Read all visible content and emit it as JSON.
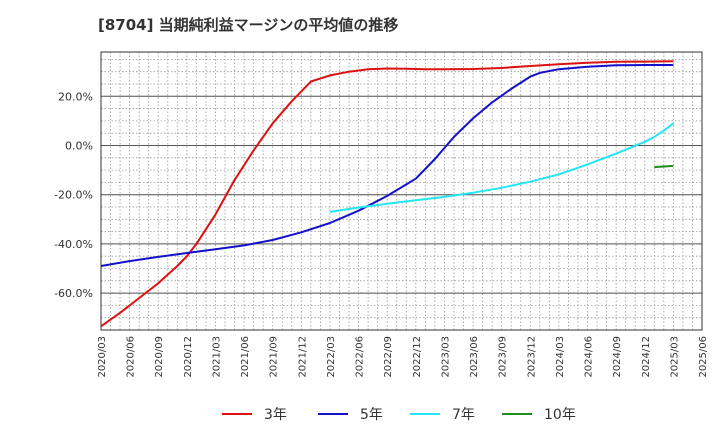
{
  "title": "[8704]  当期純利益マージンの平均値の推移",
  "chart_data": {
    "type": "line",
    "title": "[8704]  当期純利益マージンの平均値の推移",
    "xlabel": "",
    "ylabel": "",
    "x_range": [
      "2020-03",
      "2025-06"
    ],
    "ylim": [
      -75,
      38
    ],
    "y_ticks": [
      20,
      0,
      -20,
      -40,
      -60
    ],
    "y_tick_labels": [
      "20.0%",
      "0.0%",
      "-20.0%",
      "-40.0%",
      "-60.0%"
    ],
    "x_tick_labels": [
      "2020/03",
      "2020/06",
      "2020/09",
      "2020/12",
      "2021/03",
      "2021/06",
      "2021/09",
      "2021/12",
      "2022/03",
      "2022/06",
      "2022/09",
      "2022/12",
      "2023/03",
      "2023/06",
      "2023/09",
      "2023/12",
      "2024/03",
      "2024/06",
      "2024/09",
      "2024/12",
      "2025/03",
      "2025/06"
    ],
    "grid": true,
    "legend_position": "bottom",
    "series": [
      {
        "name": "3年",
        "color": "#dd1111",
        "x": [
          "2020-03",
          "2020-05",
          "2020-07",
          "2020-09",
          "2020-11",
          "2020-12",
          "2021-01",
          "2021-03",
          "2021-05",
          "2021-07",
          "2021-09",
          "2021-11",
          "2021-12",
          "2022-01",
          "2022-03",
          "2022-05",
          "2022-07",
          "2022-09",
          "2022-11",
          "2023-01",
          "2023-03",
          "2023-06",
          "2023-09",
          "2023-12",
          "2024-03",
          "2024-06",
          "2024-09",
          "2024-12",
          "2025-03"
        ],
        "values": [
          -73.5,
          -68,
          -62,
          -56,
          -49,
          -45,
          -40,
          -28,
          -14,
          -2,
          9,
          18,
          22,
          26,
          28.5,
          30,
          31,
          31.3,
          31.2,
          31,
          31,
          31.1,
          31.5,
          32.3,
          33,
          33.6,
          34,
          34.1,
          34.2
        ]
      },
      {
        "name": "5年",
        "color": "#1111cc",
        "x": [
          "2020-03",
          "2020-06",
          "2020-09",
          "2020-12",
          "2021-03",
          "2021-06",
          "2021-09",
          "2021-12",
          "2022-03",
          "2022-06",
          "2022-09",
          "2022-12",
          "2023-02",
          "2023-04",
          "2023-06",
          "2023-08",
          "2023-10",
          "2023-12",
          "2024-01",
          "2024-03",
          "2024-06",
          "2024-09",
          "2024-12",
          "2025-03"
        ],
        "values": [
          -49,
          -47,
          -45.3,
          -43.7,
          -42.2,
          -40.6,
          -38.4,
          -35.3,
          -31.5,
          -26.5,
          -20.5,
          -13.5,
          -5.5,
          3.5,
          11,
          17.5,
          23,
          28,
          29.5,
          31,
          32,
          32.6,
          32.7,
          32.7
        ]
      },
      {
        "name": "7年",
        "color": "#22e6f2",
        "x": [
          "2022-03",
          "2022-06",
          "2022-09",
          "2022-12",
          "2023-03",
          "2023-06",
          "2023-09",
          "2023-12",
          "2024-03",
          "2024-06",
          "2024-09",
          "2024-12",
          "2025-01",
          "2025-02",
          "2025-03"
        ],
        "values": [
          -27,
          -25.2,
          -23.7,
          -22.3,
          -20.9,
          -19.2,
          -17.2,
          -14.7,
          -11.7,
          -7.7,
          -3.3,
          1.5,
          3.5,
          6,
          9
        ]
      },
      {
        "name": "10年",
        "color": "#228b22",
        "x": [
          "2025-01",
          "2025-03"
        ],
        "values": [
          -8.8,
          -8.3
        ]
      }
    ]
  }
}
